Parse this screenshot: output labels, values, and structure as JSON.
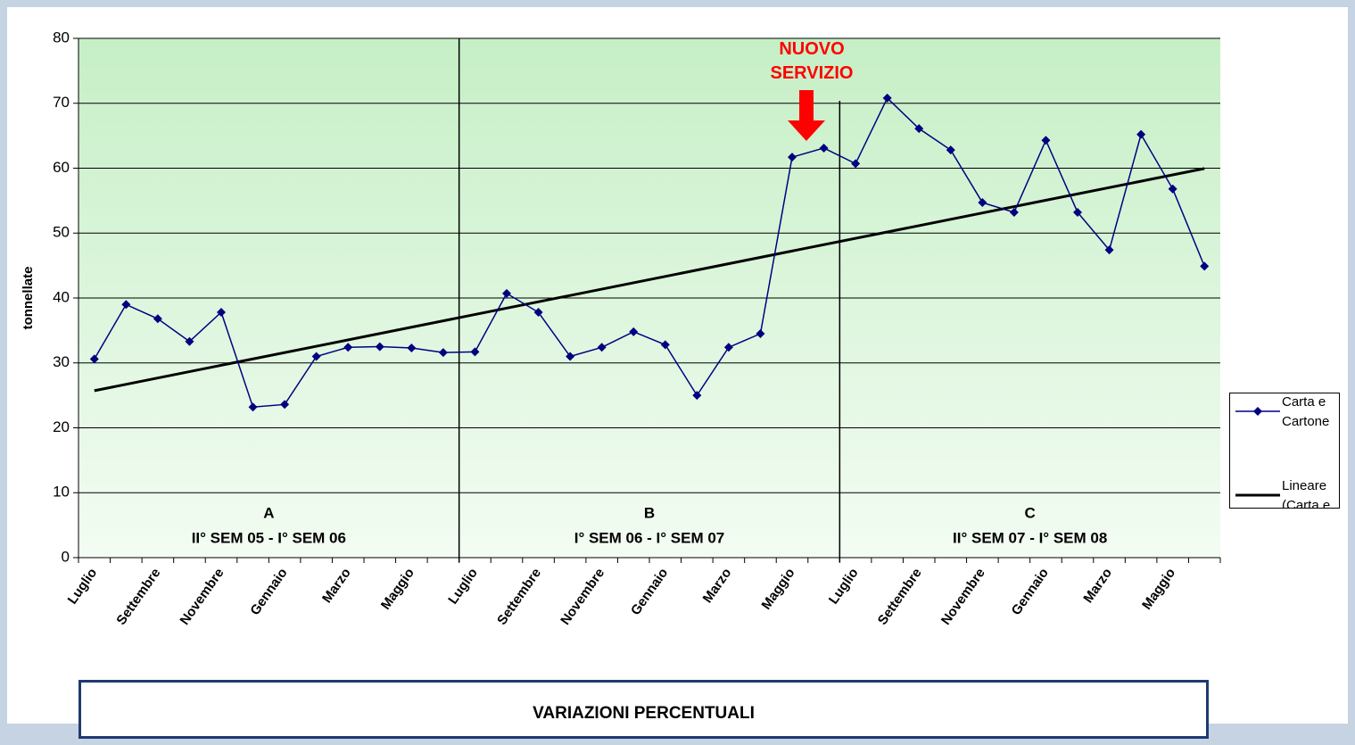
{
  "chart_data": {
    "type": "line",
    "categories": [
      "Luglio",
      null,
      "Settembre",
      null,
      "Novembre",
      null,
      "Gennaio",
      null,
      "Marzo",
      null,
      "Maggio",
      null,
      "Luglio",
      null,
      "Settembre",
      null,
      "Novembre",
      null,
      "Gennaio",
      null,
      "Marzo",
      null,
      "Maggio",
      null,
      "Luglio",
      null,
      "Settembre",
      null,
      "Novembre",
      null,
      "Gennaio",
      null,
      "Marzo",
      null,
      "Maggio",
      null
    ],
    "series": [
      {
        "name": "Carta e Cartone",
        "color": "#000080",
        "values": [
          30.6,
          39,
          36.8,
          33.3,
          37.8,
          23.2,
          23.6,
          31,
          32.4,
          32.5,
          32.3,
          31.6,
          31.7,
          40.7,
          37.8,
          31,
          32.4,
          34.8,
          32.8,
          25,
          32.4,
          34.5,
          61.7,
          63.1,
          60.7,
          70.8,
          66.1,
          62.8,
          54.7,
          53.2,
          64.3,
          53.2,
          47.4,
          65.2,
          56.8,
          44.9
        ]
      }
    ],
    "trendline": {
      "type": "linear",
      "name": "Lineare (Carta e Cartone)",
      "color": "#000000"
    },
    "ylabel": "tonnellate",
    "ylim": [
      0,
      80
    ],
    "yticks": [
      0,
      10,
      20,
      30,
      40,
      50,
      60,
      70,
      80
    ],
    "grid": true,
    "sections": [
      {
        "label": "A",
        "period": "II° SEM 05 - I° SEM 06"
      },
      {
        "label": "B",
        "period": "I° SEM 06 - I° SEM 07"
      },
      {
        "label": "C",
        "period": "II° SEM 07 - I° SEM 08"
      }
    ],
    "annotation": {
      "text": "NUOVO SERVIZIO",
      "color": "#ff0000"
    },
    "legend": "right"
  },
  "footer": {
    "title": "VARIAZIONI PERCENTUALI"
  }
}
